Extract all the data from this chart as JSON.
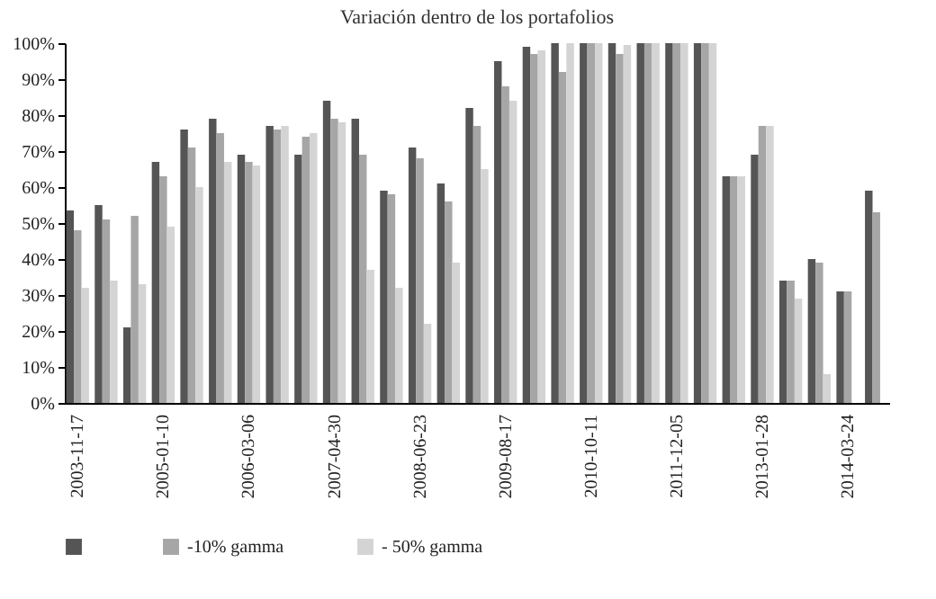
{
  "chart_data": {
    "type": "bar",
    "title": "Variación dentro de los portafolios",
    "categories": [
      "2003-11-17",
      null,
      null,
      "2005-01-10",
      null,
      null,
      "2006-03-06",
      null,
      null,
      "2007-04-30",
      null,
      null,
      "2008-06-23",
      null,
      null,
      "2009-08-17",
      null,
      null,
      "2010-10-11",
      null,
      null,
      "2011-12-05",
      null,
      null,
      "2013-01-28",
      null,
      null,
      "2014-03-24",
      null
    ],
    "series": [
      {
        "color": "#555555",
        "values": [
          53.5,
          55,
          21,
          67,
          76,
          79,
          69,
          77,
          69,
          84,
          79,
          59,
          71,
          61,
          82,
          95,
          99,
          100,
          100,
          100,
          100,
          100,
          100,
          63,
          69,
          34,
          40,
          31,
          59
        ]
      },
      {
        "name": "-10% gamma",
        "color": "#a6a6a6",
        "values": [
          48,
          51,
          52,
          63,
          71,
          75,
          67,
          76,
          74,
          79,
          69,
          58,
          68,
          56,
          77,
          88,
          97,
          92,
          100,
          97,
          100,
          100,
          100,
          63,
          77,
          34,
          39,
          31,
          53
        ]
      },
      {
        "name": "- 50% gamma",
        "color": "#d4d4d4",
        "values": [
          32,
          34,
          33,
          49,
          60,
          67,
          66,
          77,
          75,
          78,
          37,
          32,
          22,
          39,
          65,
          84,
          98,
          100,
          100,
          99.5,
          100,
          100,
          100,
          63,
          77,
          29,
          8,
          null,
          null
        ]
      }
    ],
    "ylim": [
      0,
      100
    ],
    "yticks": [
      {
        "value": 0,
        "label": "0%"
      },
      {
        "value": 10,
        "label": "10%"
      },
      {
        "value": 20,
        "label": "20%"
      },
      {
        "value": 30,
        "label": "30%"
      },
      {
        "value": 40,
        "label": "40%"
      },
      {
        "value": 50,
        "label": "50%"
      },
      {
        "value": 60,
        "label": "60%"
      },
      {
        "value": 70,
        "label": "70%"
      },
      {
        "value": 80,
        "label": "80%"
      },
      {
        "value": 90,
        "label": "90%"
      },
      {
        "value": 100,
        "label": "100%"
      }
    ],
    "grid": false,
    "legend": "bottom"
  }
}
